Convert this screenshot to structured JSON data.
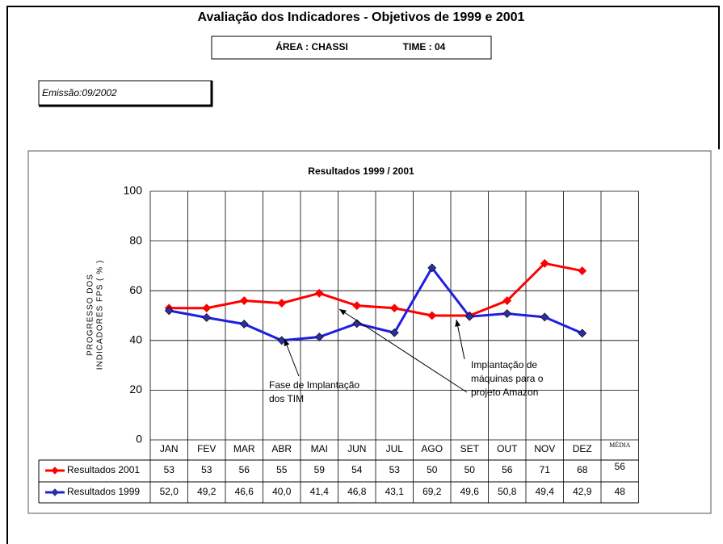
{
  "header": {
    "title": "Avaliação dos Indicadores  - Objetivos de  1999 e  2001",
    "area": "ÁREA :  CHASSI",
    "team": "TIME : 04",
    "issue": "Emissão:09/2002"
  },
  "chart_data": {
    "type": "line",
    "title": "Resultados 1999 / 2001",
    "ylabel_lines": [
      "PROGRESSO DOS",
      "INDICADORES FPS  ( % )"
    ],
    "categories": [
      "JAN",
      "FEV",
      "MAR",
      "ABR",
      "MAI",
      "JUN",
      "JUL",
      "AGO",
      "SET",
      "OUT",
      "NOV",
      "DEZ"
    ],
    "average_label": "MÉDIA",
    "series": [
      {
        "name": "Resultados 2001",
        "color": "#ff0000",
        "marker_color": "#ff0000",
        "values": [
          53,
          53,
          56,
          55,
          59,
          54,
          53,
          50,
          50,
          56,
          71,
          68
        ],
        "average": 56
      },
      {
        "name": "Resultados 1999",
        "color": "#1f1fe0",
        "marker_color": "#2e2e9e",
        "values": [
          52.0,
          49.2,
          46.6,
          40.0,
          41.4,
          46.8,
          43.1,
          69.2,
          49.6,
          50.8,
          49.4,
          42.9
        ],
        "value_labels": [
          "52,0",
          "49,2",
          "46,6",
          "40,0",
          "41,4",
          "46,8",
          "43,1",
          "69,2",
          "49,6",
          "50,8",
          "49,4",
          "42,9"
        ],
        "average": 48
      }
    ],
    "ylim": [
      0,
      100
    ],
    "yticks": [
      0,
      20,
      40,
      60,
      80,
      100
    ],
    "grid": true,
    "annotations": [
      {
        "lines": [
          "Fase de Implantação",
          "dos TIM"
        ]
      },
      {
        "lines": [
          "Implantação de",
          "máquinas para o",
          "projeto Amazon"
        ]
      }
    ]
  }
}
